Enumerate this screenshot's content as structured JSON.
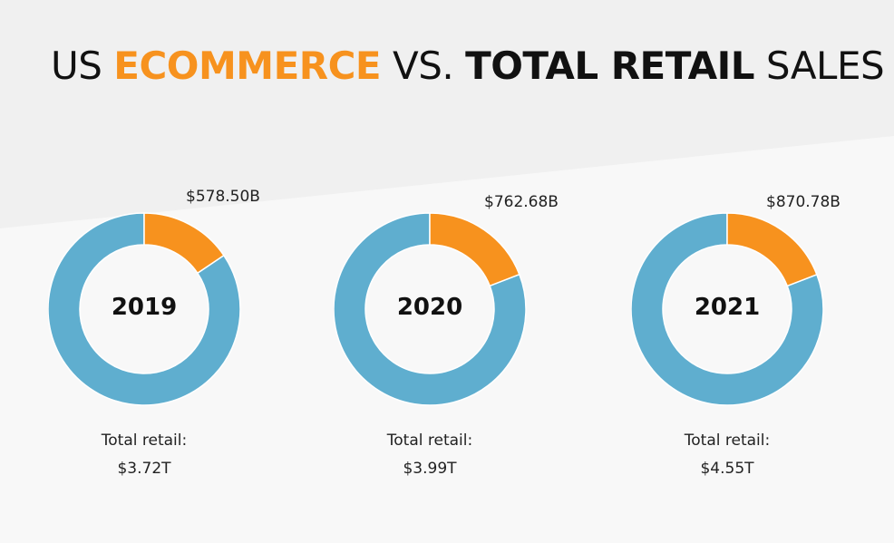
{
  "title": {
    "part1": "US ",
    "part2": "ECOMMERCE",
    "part3": " VS. ",
    "part4": "TOTAL RETAIL",
    "part5": " SALES"
  },
  "colors": {
    "ecommerce": "#F7921E",
    "total_retail": "#5FAECF",
    "background_top": "#F0F0F0",
    "background_bottom": "#F8F8F8",
    "title_accent": "#F7921E"
  },
  "chart_data": [
    {
      "type": "pie",
      "style": "donut",
      "year": "2019",
      "ecommerce_label": "$578.50B",
      "total_label_line1": "Total retail:",
      "total_label_line2": "$3.72T",
      "ecommerce": 578.5,
      "total_retail": 3720
    },
    {
      "type": "pie",
      "style": "donut",
      "year": "2020",
      "ecommerce_label": "$762.68B",
      "total_label_line1": "Total retail:",
      "total_label_line2": "$3.99T",
      "ecommerce": 762.68,
      "total_retail": 3990
    },
    {
      "type": "pie",
      "style": "donut",
      "year": "2021",
      "ecommerce_label": "$870.78B",
      "total_label_line1": "Total retail:",
      "total_label_line2": "$4.55T",
      "ecommerce": 870.78,
      "total_retail": 4550
    }
  ]
}
